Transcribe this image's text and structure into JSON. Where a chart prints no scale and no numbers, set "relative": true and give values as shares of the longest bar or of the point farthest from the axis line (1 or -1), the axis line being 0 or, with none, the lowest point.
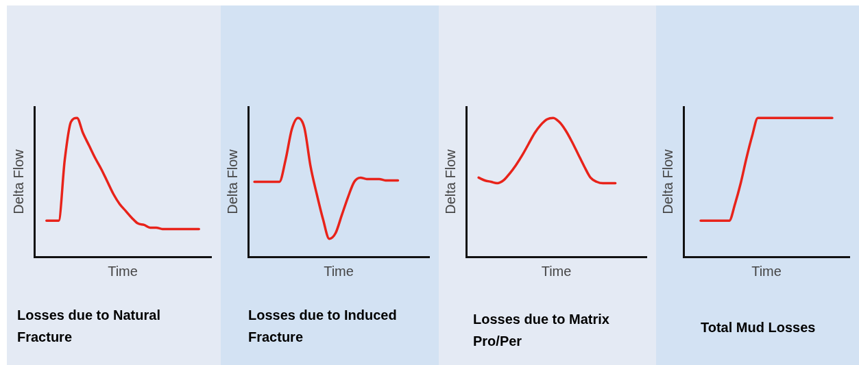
{
  "chart_data": [
    {
      "type": "line",
      "title": "Losses due to Natural Fracture",
      "xlabel": "Time",
      "ylabel": "Delta Flow",
      "relative": true,
      "categories": [
        null,
        null,
        null,
        null,
        null,
        null,
        null,
        null,
        null,
        null,
        null,
        null,
        null,
        null,
        null,
        null,
        null,
        null,
        null,
        null,
        null,
        null,
        null,
        null,
        null,
        null,
        null,
        null,
        null,
        null
      ],
      "series": [
        {
          "color": "#e8231a",
          "values": [
            null,
            null,
            0.26,
            0.26,
            0.26,
            0.7,
            0.97,
            1,
            0.89,
            0.8,
            0.71,
            0.63,
            0.54,
            0.45,
            0.38,
            0.33,
            0.28,
            0.24,
            0.23,
            0.21,
            0.21,
            0.2,
            0.2,
            0.2,
            0.2,
            0.2,
            0.2,
            0.2,
            null,
            null
          ]
        }
      ]
    },
    {
      "type": "line",
      "title": "Losses due to Induced Fracture",
      "xlabel": "Time",
      "ylabel": "Delta Flow",
      "relative": true,
      "categories": [
        null,
        null,
        null,
        null,
        null,
        null,
        null,
        null,
        null,
        null,
        null,
        null,
        null,
        null,
        null,
        null,
        null,
        null,
        null,
        null,
        null,
        null,
        null,
        null,
        null,
        null,
        null,
        null,
        null,
        null
      ],
      "series": [
        {
          "color": "#e8231a",
          "values": [
            null,
            0.54,
            0.54,
            0.54,
            0.54,
            0.54,
            0.7,
            0.92,
            1,
            0.93,
            0.65,
            0.45,
            0.27,
            0.13,
            0.17,
            0.3,
            0.43,
            0.54,
            0.57,
            0.56,
            0.56,
            0.56,
            0.55,
            0.55,
            0.55,
            null,
            null,
            null,
            null,
            null
          ]
        }
      ]
    },
    {
      "type": "line",
      "title": "Losses due to Matrix Pro/Per",
      "xlabel": "Time",
      "ylabel": "Delta Flow",
      "relative": true,
      "categories": [
        null,
        null,
        null,
        null,
        null,
        null,
        null,
        null,
        null,
        null,
        null,
        null,
        null,
        null,
        null,
        null,
        null,
        null,
        null,
        null,
        null,
        null,
        null,
        null,
        null,
        null,
        null,
        null,
        null,
        null
      ],
      "series": [
        {
          "color": "#e8231a",
          "values": [
            null,
            null,
            0.57,
            0.55,
            0.54,
            0.53,
            0.55,
            0.6,
            0.66,
            0.73,
            0.81,
            0.89,
            0.95,
            0.99,
            1,
            0.97,
            0.91,
            0.83,
            0.74,
            0.65,
            0.57,
            0.54,
            0.53,
            0.53,
            0.53,
            null,
            null,
            null,
            null,
            null
          ]
        }
      ]
    },
    {
      "type": "line",
      "title": "Total Mud Losses",
      "xlabel": "Time",
      "ylabel": "Delta Flow",
      "relative": true,
      "categories": [
        null,
        null,
        null,
        null,
        null,
        null,
        null,
        null,
        null,
        null,
        null,
        null,
        null,
        null,
        null,
        null,
        null,
        null,
        null,
        null,
        null,
        null,
        null,
        null,
        null,
        null,
        null,
        null,
        null,
        null
      ],
      "series": [
        {
          "color": "#e8231a",
          "values": [
            null,
            null,
            null,
            0.26,
            0.26,
            0.26,
            0.26,
            0.26,
            0.26,
            0.38,
            0.53,
            0.71,
            0.87,
            1,
            1,
            1,
            1,
            1,
            1,
            1,
            1,
            1,
            1,
            1,
            1,
            1,
            1,
            null,
            null,
            null
          ]
        }
      ]
    }
  ]
}
